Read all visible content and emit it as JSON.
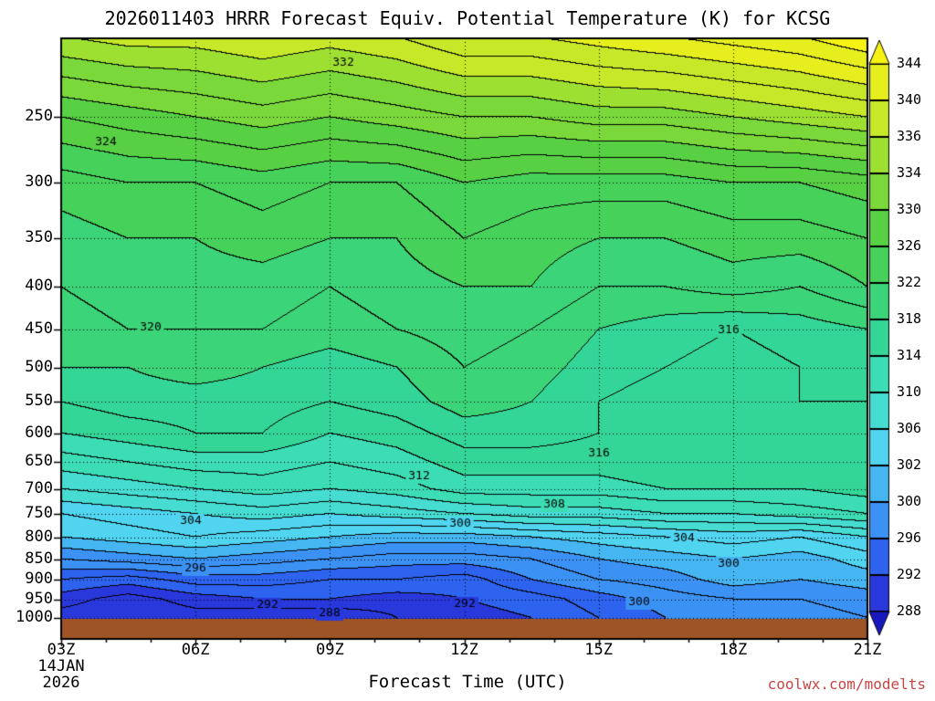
{
  "page": {
    "title": "2026011403 HRRR Forecast Equiv. Potential Temperature (K) for KCSG"
  },
  "watermark": {
    "text": "coolwx.com/modelts",
    "color": "#cc4444"
  },
  "chart_data": {
    "type": "heatmap",
    "title": "2026011403 HRRR Forecast Equiv. Potential Temperature (K) for KCSG",
    "xlabel": "Forecast Time (UTC)",
    "ylabel": "Pressure (hPa)",
    "grid_on": true,
    "x_axis": {
      "ticks": [
        {
          "t": 3,
          "label": "03Z"
        },
        {
          "t": 6,
          "label": "06Z"
        },
        {
          "t": 9,
          "label": "09Z"
        },
        {
          "t": 12,
          "label": "12Z"
        },
        {
          "t": 15,
          "label": "15Z"
        },
        {
          "t": 18,
          "label": "18Z"
        },
        {
          "t": 21,
          "label": "21Z"
        }
      ],
      "minor_step_hours": 1,
      "range_hours": [
        3,
        21
      ],
      "date_lines": [
        "14JAN",
        "2026"
      ]
    },
    "y_axis": {
      "unit": "hPa",
      "scale": "log-pressure",
      "ticks": [
        250,
        300,
        350,
        400,
        450,
        500,
        550,
        600,
        650,
        700,
        750,
        800,
        850,
        900,
        950,
        1000
      ],
      "range": [
        200,
        1003
      ]
    },
    "colorbar": {
      "levels": [
        288,
        292,
        296,
        300,
        302,
        306,
        310,
        314,
        318,
        322,
        326,
        330,
        334,
        336,
        340,
        344
      ],
      "colors": [
        "#1818c0",
        "#2838da",
        "#2d63ee",
        "#3c92f4",
        "#46b6f2",
        "#50d4f0",
        "#46dcd2",
        "#3cdcb4",
        "#34d698",
        "#3cd478",
        "#46d25a",
        "#58d044",
        "#7ad83a",
        "#9ee032",
        "#c6e828",
        "#e6ee1e",
        "#f6f214"
      ],
      "arrow_below": true,
      "arrow_above": true
    },
    "contour_interval": 2,
    "grid": {
      "times": [
        3,
        4.5,
        6,
        7.5,
        9,
        10.5,
        12,
        13.5,
        15,
        16.5,
        18,
        19.5,
        21
      ],
      "pressures": [
        200,
        250,
        300,
        350,
        400,
        450,
        500,
        550,
        600,
        650,
        700,
        750,
        800,
        850,
        900,
        950,
        1000
      ],
      "values": [
        [
          336,
          337,
          337,
          338,
          337,
          338,
          340,
          340,
          341,
          342,
          343,
          344,
          346
        ],
        [
          328,
          329,
          330,
          331,
          330,
          331,
          332,
          332,
          333,
          333,
          334,
          335,
          336
        ],
        [
          323,
          324,
          324,
          325,
          324,
          324,
          326,
          325,
          325,
          325,
          326,
          326,
          327
        ],
        [
          321,
          322,
          322,
          323,
          322,
          322,
          324,
          323,
          322,
          322,
          323,
          323,
          324
        ],
        [
          320,
          321,
          321,
          321,
          320,
          321,
          322,
          322,
          320,
          320,
          321,
          320,
          322
        ],
        [
          319,
          320,
          320,
          320,
          319,
          320,
          321,
          320,
          318,
          317,
          316,
          317,
          318
        ],
        [
          318,
          318,
          319,
          318,
          317,
          318,
          320,
          319,
          317,
          316,
          315,
          316,
          317
        ],
        [
          316,
          317,
          317,
          317,
          316,
          317,
          319,
          318,
          316,
          315,
          315,
          316,
          316
        ],
        [
          314,
          315,
          316,
          316,
          314,
          315,
          317,
          317,
          316,
          315,
          314,
          315,
          316
        ],
        [
          311,
          312,
          313,
          313,
          312,
          313,
          315,
          315,
          315,
          316,
          315,
          315,
          316
        ],
        [
          308,
          309,
          310,
          311,
          310,
          311,
          313,
          313,
          313,
          314,
          314,
          314,
          315
        ],
        [
          304,
          305,
          306,
          307,
          306,
          307,
          308,
          309,
          309,
          310,
          310,
          311,
          312
        ],
        [
          302,
          303,
          304,
          303,
          302,
          301,
          301,
          302,
          303,
          304,
          305,
          304,
          306
        ],
        [
          298,
          299,
          300,
          299,
          298,
          297,
          297,
          298,
          300,
          301,
          302,
          301,
          303
        ],
        [
          294,
          293,
          295,
          295,
          294,
          294,
          293,
          296,
          298,
          299,
          301,
          300,
          301
        ],
        [
          291,
          289,
          291,
          292,
          292,
          291,
          292,
          293,
          295,
          297,
          298,
          298,
          299
        ],
        [
          289,
          288,
          289,
          288,
          288,
          290,
          291,
          292,
          294,
          296,
          297,
          297,
          298
        ]
      ]
    },
    "contour_labels": [
      {
        "v": 332,
        "t": 9.3,
        "p": 215
      },
      {
        "v": 324,
        "t": 4.0,
        "p": 268
      },
      {
        "v": 320,
        "t": 5.0,
        "p": 448
      },
      {
        "v": 316,
        "t": 17.9,
        "p": 451
      },
      {
        "v": 316,
        "t": 15.0,
        "p": 634
      },
      {
        "v": 312,
        "t": 11.0,
        "p": 676
      },
      {
        "v": 308,
        "t": 14.0,
        "p": 731
      },
      {
        "v": 304,
        "t": 5.9,
        "p": 766
      },
      {
        "v": 300,
        "t": 11.9,
        "p": 771
      },
      {
        "v": 304,
        "t": 16.9,
        "p": 802
      },
      {
        "v": 296,
        "t": 6.0,
        "p": 872
      },
      {
        "v": 300,
        "t": 17.9,
        "p": 861
      },
      {
        "v": 292,
        "t": 7.6,
        "p": 965
      },
      {
        "v": 288,
        "t": 9.0,
        "p": 987
      },
      {
        "v": 292,
        "t": 12.0,
        "p": 963
      },
      {
        "v": 300,
        "t": 15.9,
        "p": 958
      }
    ],
    "ground_color": "#9e5426"
  }
}
